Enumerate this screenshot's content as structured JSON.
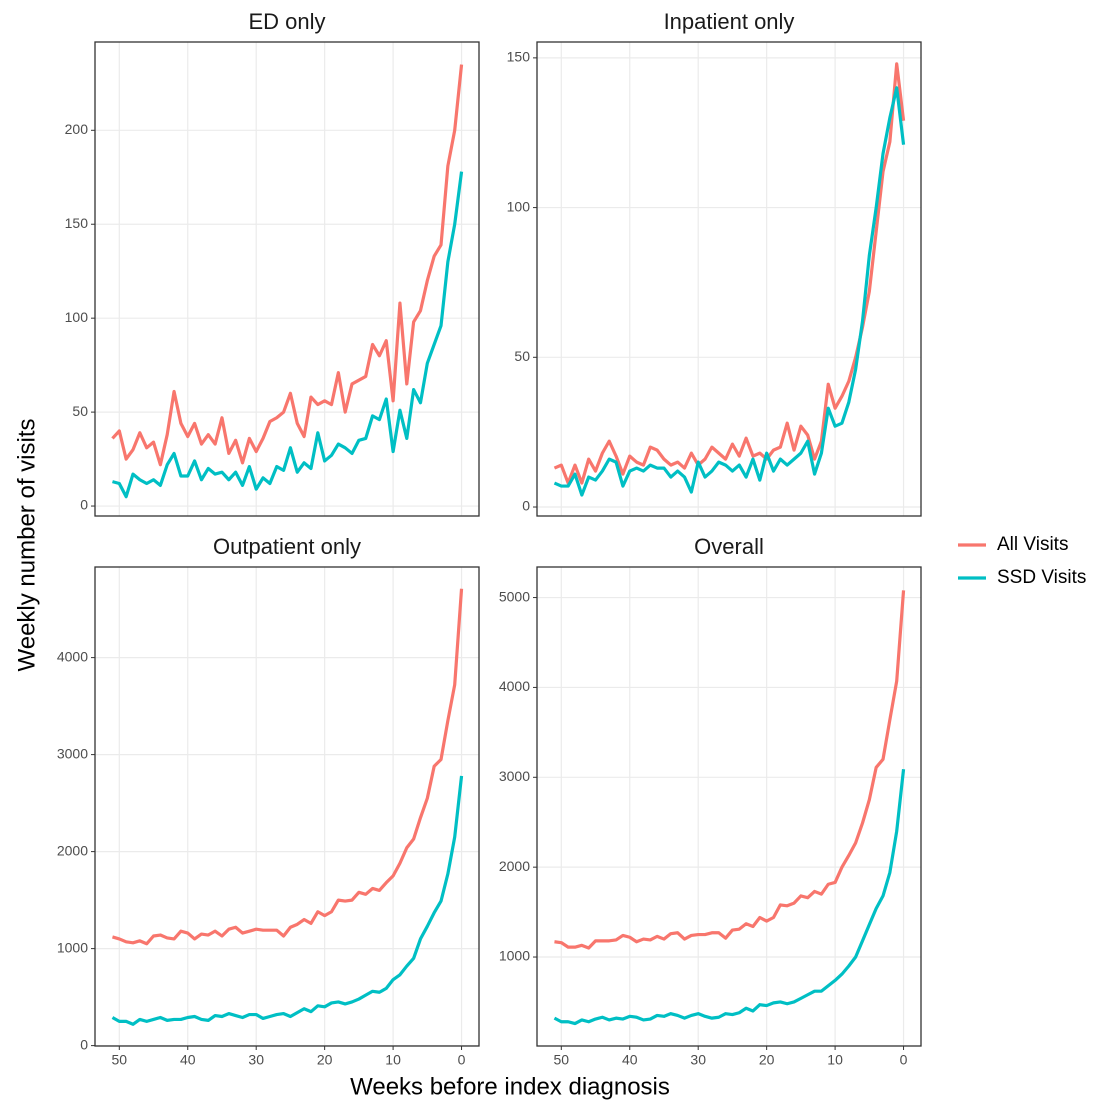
{
  "chart_data": [
    {
      "type": "line",
      "title": "ED only",
      "x": [
        51,
        50,
        49,
        48,
        47,
        46,
        45,
        44,
        43,
        42,
        41,
        40,
        39,
        38,
        37,
        36,
        35,
        34,
        33,
        32,
        31,
        30,
        29,
        28,
        27,
        26,
        25,
        24,
        23,
        22,
        21,
        20,
        19,
        18,
        17,
        16,
        15,
        14,
        13,
        12,
        11,
        10,
        9,
        8,
        7,
        6,
        5,
        4,
        3,
        2,
        1,
        0
      ],
      "series": [
        {
          "name": "All Visits",
          "color": "#F8766D",
          "values": [
            36,
            40,
            25,
            30,
            39,
            31,
            34,
            22,
            38,
            61,
            44,
            37,
            44,
            33,
            38,
            33,
            47,
            28,
            35,
            23,
            36,
            29,
            36,
            45,
            47,
            50,
            60,
            44,
            37,
            58,
            54,
            56,
            54,
            71,
            50,
            65,
            67,
            69,
            86,
            80,
            88,
            56,
            108,
            65,
            98,
            104,
            120,
            133,
            139,
            181,
            200,
            235
          ]
        },
        {
          "name": "SSD Visits",
          "color": "#00BFC4",
          "values": [
            13,
            12,
            5,
            17,
            14,
            12,
            14,
            11,
            22,
            28,
            16,
            16,
            24,
            14,
            20,
            17,
            18,
            14,
            18,
            11,
            21,
            9,
            15,
            12,
            21,
            19,
            31,
            18,
            23,
            20,
            39,
            24,
            27,
            33,
            31,
            28,
            35,
            36,
            48,
            46,
            57,
            29,
            51,
            36,
            62,
            55,
            76,
            86,
            96,
            130,
            150,
            178
          ]
        }
      ],
      "xlim": [
        53.55,
        -2.55
      ],
      "xticks": [
        50,
        40,
        30,
        20,
        10,
        0
      ],
      "ylim": [
        -5.3,
        247
      ],
      "yticks": [
        0,
        50,
        100,
        150,
        200
      ],
      "grid": true
    },
    {
      "type": "line",
      "title": "Inpatient only",
      "x": [
        51,
        50,
        49,
        48,
        47,
        46,
        45,
        44,
        43,
        42,
        41,
        40,
        39,
        38,
        37,
        36,
        35,
        34,
        33,
        32,
        31,
        30,
        29,
        28,
        27,
        26,
        25,
        24,
        23,
        22,
        21,
        20,
        19,
        18,
        17,
        16,
        15,
        14,
        13,
        12,
        11,
        10,
        9,
        8,
        7,
        6,
        5,
        4,
        3,
        2,
        1,
        0
      ],
      "series": [
        {
          "name": "All Visits",
          "color": "#F8766D",
          "values": [
            13,
            14,
            8,
            14,
            8,
            16,
            12,
            18,
            22,
            17,
            11,
            17,
            15,
            14,
            20,
            19,
            16,
            14,
            15,
            13,
            18,
            14,
            16,
            20,
            18,
            16,
            21,
            17,
            23,
            17,
            18,
            16,
            19,
            20,
            28,
            19,
            27,
            24,
            16,
            22,
            41,
            33,
            37,
            42,
            50,
            60,
            72,
            92,
            112,
            122,
            148,
            129
          ]
        },
        {
          "name": "SSD Visits",
          "color": "#00BFC4",
          "values": [
            8,
            7,
            7,
            11,
            4,
            10,
            9,
            12,
            16,
            15,
            7,
            12,
            13,
            12,
            14,
            13,
            13,
            10,
            12,
            10,
            5,
            15,
            10,
            12,
            15,
            14,
            12,
            14,
            10,
            16,
            9,
            18,
            12,
            16,
            14,
            16,
            18,
            22,
            11,
            18,
            33,
            27,
            28,
            35,
            46,
            62,
            84,
            100,
            118,
            130,
            140,
            121
          ]
        }
      ],
      "xlim": [
        53.55,
        -2.55
      ],
      "xticks": [
        50,
        40,
        30,
        20,
        10,
        0
      ],
      "ylim": [
        -3,
        155.3
      ],
      "yticks": [
        0,
        50,
        100,
        150
      ],
      "grid": true
    },
    {
      "type": "line",
      "title": "Outpatient only",
      "x": [
        51,
        50,
        49,
        48,
        47,
        46,
        45,
        44,
        43,
        42,
        41,
        40,
        39,
        38,
        37,
        36,
        35,
        34,
        33,
        32,
        31,
        30,
        29,
        28,
        27,
        26,
        25,
        24,
        23,
        22,
        21,
        20,
        19,
        18,
        17,
        16,
        15,
        14,
        13,
        12,
        11,
        10,
        9,
        8,
        7,
        6,
        5,
        4,
        3,
        2,
        1,
        0
      ],
      "series": [
        {
          "name": "All Visits",
          "color": "#F8766D",
          "values": [
            1120,
            1100,
            1070,
            1060,
            1080,
            1050,
            1130,
            1140,
            1110,
            1100,
            1180,
            1160,
            1100,
            1150,
            1140,
            1180,
            1130,
            1200,
            1220,
            1160,
            1180,
            1200,
            1190,
            1190,
            1190,
            1130,
            1220,
            1250,
            1300,
            1260,
            1380,
            1340,
            1380,
            1500,
            1490,
            1500,
            1580,
            1560,
            1620,
            1600,
            1680,
            1750,
            1880,
            2040,
            2130,
            2350,
            2550,
            2880,
            2950,
            3350,
            3720,
            4710
          ]
        },
        {
          "name": "SSD Visits",
          "color": "#00BFC4",
          "values": [
            290,
            250,
            250,
            220,
            270,
            250,
            270,
            290,
            260,
            270,
            270,
            290,
            300,
            270,
            260,
            310,
            300,
            330,
            310,
            290,
            320,
            320,
            280,
            300,
            320,
            330,
            300,
            340,
            380,
            350,
            410,
            400,
            440,
            450,
            430,
            450,
            480,
            520,
            560,
            550,
            590,
            680,
            730,
            820,
            900,
            1100,
            1230,
            1370,
            1490,
            1770,
            2150,
            2780
          ]
        }
      ],
      "xlim": [
        53.55,
        -2.55
      ],
      "xticks": [
        50,
        40,
        30,
        20,
        10,
        0
      ],
      "ylim": [
        -4,
        4934
      ],
      "yticks": [
        0,
        1000,
        2000,
        3000,
        4000
      ],
      "grid": true
    },
    {
      "type": "line",
      "title": "Overall",
      "x": [
        51,
        50,
        49,
        48,
        47,
        46,
        45,
        44,
        43,
        42,
        41,
        40,
        39,
        38,
        37,
        36,
        35,
        34,
        33,
        32,
        31,
        30,
        29,
        28,
        27,
        26,
        25,
        24,
        23,
        22,
        21,
        20,
        19,
        18,
        17,
        16,
        15,
        14,
        13,
        12,
        11,
        10,
        9,
        8,
        7,
        6,
        5,
        4,
        3,
        2,
        1,
        0
      ],
      "series": [
        {
          "name": "All Visits",
          "color": "#F8766D",
          "values": [
            1170,
            1160,
            1110,
            1110,
            1130,
            1100,
            1180,
            1180,
            1180,
            1190,
            1240,
            1220,
            1170,
            1200,
            1190,
            1230,
            1200,
            1260,
            1270,
            1200,
            1240,
            1250,
            1250,
            1270,
            1270,
            1210,
            1300,
            1310,
            1370,
            1340,
            1440,
            1400,
            1440,
            1580,
            1570,
            1600,
            1680,
            1660,
            1730,
            1700,
            1810,
            1830,
            2000,
            2130,
            2270,
            2490,
            2750,
            3110,
            3200,
            3640,
            4070,
            5080
          ]
        },
        {
          "name": "SSD Visits",
          "color": "#00BFC4",
          "values": [
            320,
            280,
            280,
            260,
            300,
            280,
            310,
            330,
            300,
            320,
            310,
            340,
            330,
            300,
            310,
            350,
            340,
            370,
            350,
            320,
            350,
            370,
            340,
            320,
            330,
            370,
            360,
            380,
            430,
            400,
            470,
            460,
            490,
            500,
            480,
            500,
            540,
            580,
            620,
            620,
            680,
            740,
            810,
            900,
            1000,
            1180,
            1360,
            1540,
            1680,
            1940,
            2400,
            3090
          ]
        }
      ],
      "xlim": [
        53.55,
        -2.55
      ],
      "xticks": [
        50,
        40,
        30,
        20,
        10,
        0
      ],
      "ylim": [
        10,
        5340
      ],
      "yticks": [
        1000,
        2000,
        3000,
        4000,
        5000
      ],
      "grid": true
    }
  ],
  "x_label": "Weeks before index diagnosis",
  "y_label": "Weekly number of visits"
}
